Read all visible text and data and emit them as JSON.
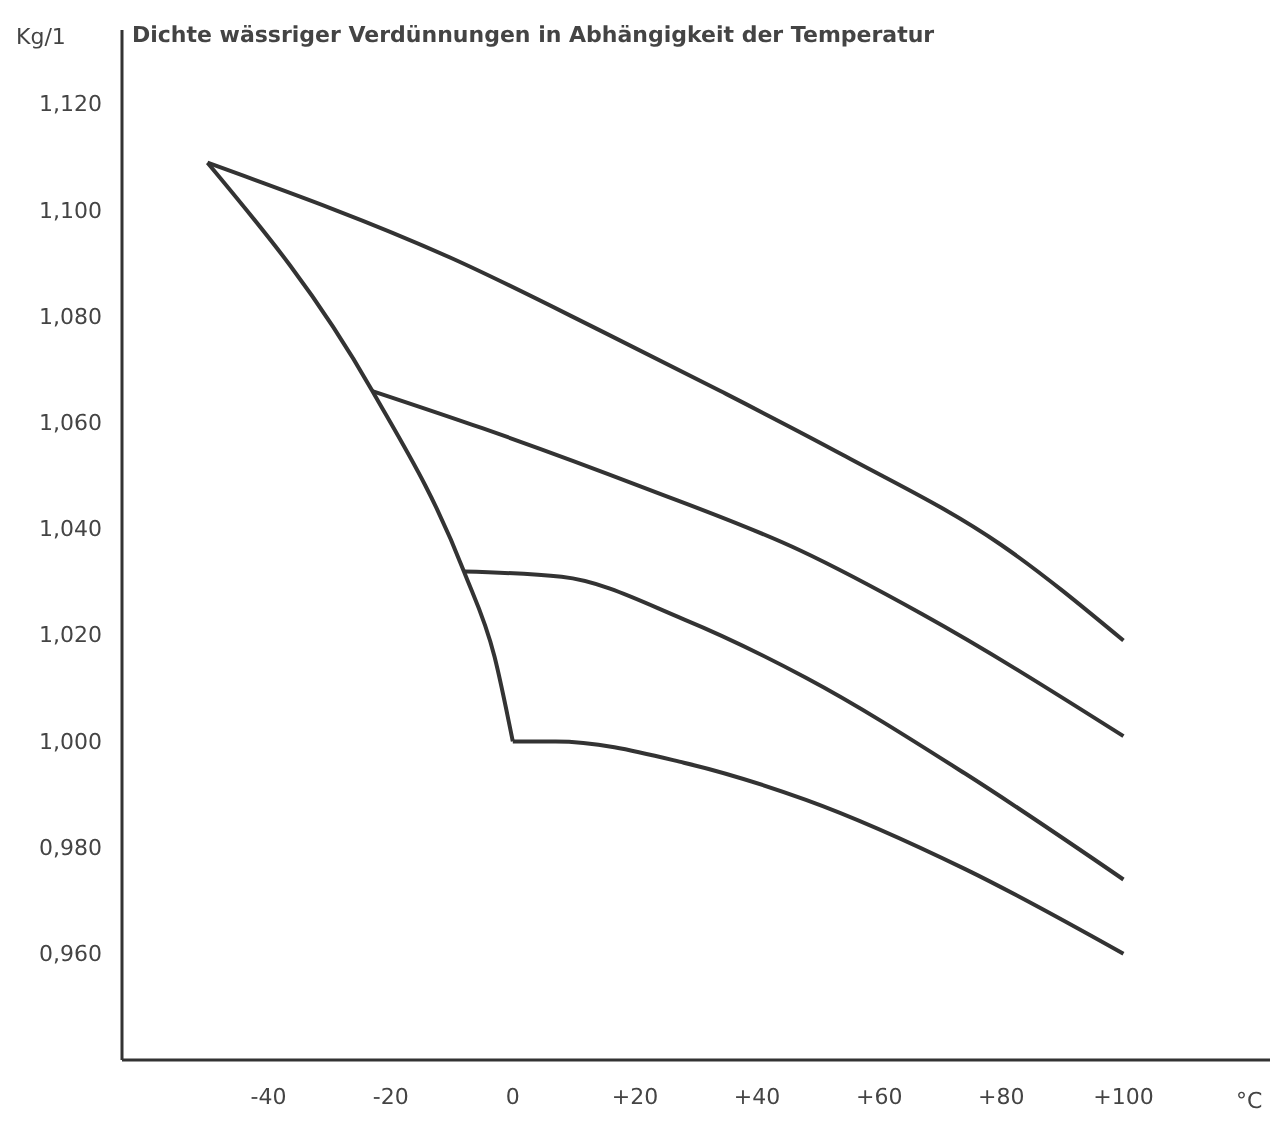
{
  "chart_data": {
    "type": "line",
    "title": "Dichte wässriger Verdünnungen in Abhängigkeit der Temperatur",
    "xlabel": "°C",
    "ylabel": "Kg/1",
    "xlim": [
      -64,
      124
    ],
    "ylim": [
      0.94,
      1.134
    ],
    "xticks": [
      {
        "value": -40,
        "label": "-40"
      },
      {
        "value": -20,
        "label": "-20"
      },
      0,
      {
        "value": 20,
        "label": "+20"
      },
      {
        "value": 40,
        "label": "+40"
      },
      {
        "value": 60,
        "label": "+60"
      },
      {
        "value": 80,
        "label": "+80"
      },
      {
        "value": 100,
        "label": "+100"
      }
    ],
    "yticks": [
      {
        "value": 0.96,
        "label": "0,960"
      },
      {
        "value": 0.98,
        "label": "0,980"
      },
      {
        "value": 1.0,
        "label": "1,000"
      },
      {
        "value": 1.02,
        "label": "1,020"
      },
      {
        "value": 1.04,
        "label": "1,040"
      },
      {
        "value": 1.06,
        "label": "1,060"
      },
      {
        "value": 1.08,
        "label": "1,080"
      },
      {
        "value": 1.1,
        "label": "1,100"
      },
      {
        "value": 1.12,
        "label": "1,120"
      }
    ],
    "grid": false,
    "line_style": "solid",
    "marker": "none",
    "series": [
      {
        "color": "#333333",
        "x": [
          -50,
          -10,
          15,
          34,
          54,
          80,
          100
        ],
        "values": [
          1.109,
          1.091,
          1.077,
          1.066,
          1.054,
          1.037,
          1.019
        ]
      },
      {
        "color": "#333333",
        "x": [
          -23,
          -5,
          21,
          47,
          67,
          100
        ],
        "values": [
          1.066,
          1.059,
          1.048,
          1.036,
          1.024,
          1.001
        ]
      },
      {
        "color": "#333333",
        "x": [
          -8,
          8,
          28,
          48,
          74,
          100
        ],
        "values": [
          1.032,
          1.031,
          1.023,
          1.012,
          0.994,
          0.974
        ]
      },
      {
        "color": "#333333",
        "x": [
          0,
          7,
          28,
          48,
          74,
          100
        ],
        "values": [
          1.0,
          1.0,
          0.996,
          0.989,
          0.976,
          0.96
        ]
      },
      {
        "color": "#333333",
        "x": [
          -50,
          -23,
          -8,
          -3,
          0
        ],
        "values": [
          1.109,
          1.066,
          1.032,
          1.016,
          1.0
        ]
      }
    ]
  }
}
